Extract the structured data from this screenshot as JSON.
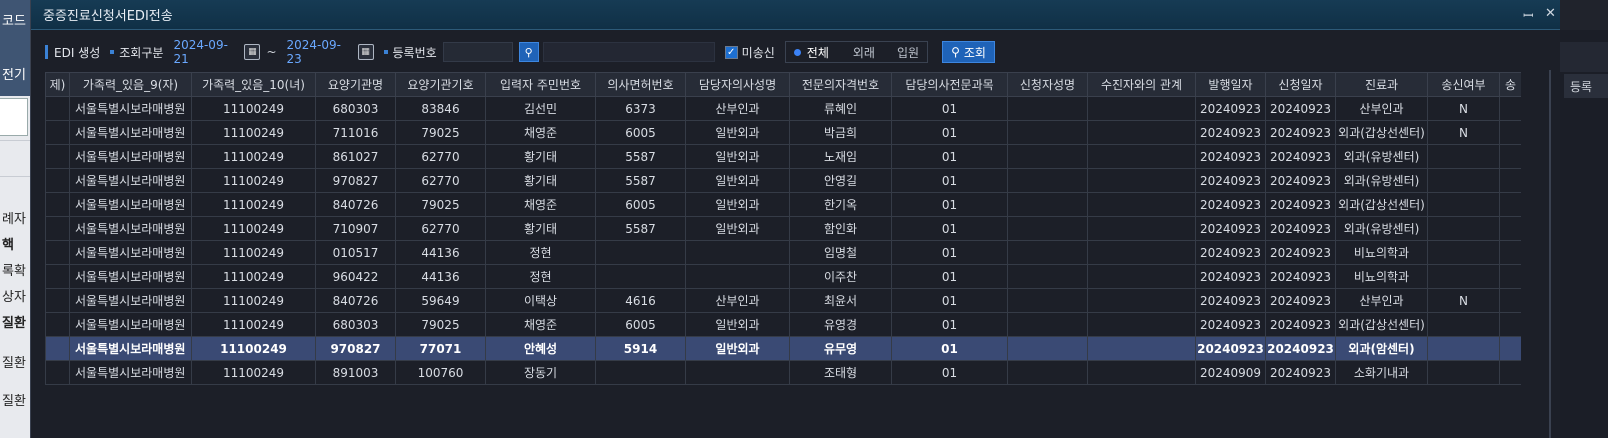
{
  "background_app": {
    "left_texts": [
      "코드",
      "전기",
      "례자",
      "핵",
      "록확",
      "상자",
      "질환",
      "질환",
      "질환"
    ],
    "right_header": "등록"
  },
  "dialog": {
    "title": "중증진료신청서EDI전송",
    "pin_icon": "pin-icon",
    "close_icon": "close-icon"
  },
  "toolbar": {
    "edi_label": "EDI 생성",
    "period_label": "조회구분",
    "date_from": "2024-09-21",
    "tilde": "~",
    "date_to": "2024-09-23",
    "reg_label": "등록번호",
    "reg_value": "",
    "unsent_label": "미송신",
    "radio_all": "전체",
    "radio_out": "외래",
    "radio_in": "입원",
    "query_label": "조회"
  },
  "grid": {
    "columns": [
      "제)",
      "가족력_있음_9(자)",
      "가족력_있음_10(녀)",
      "요양기관명",
      "요양기관기호",
      "입력자 주민번호",
      "의사면허번호",
      "담당자의사성명",
      "전문의자격번호",
      "담당의사전문과목",
      "신청자성명",
      "수진자와의 관계",
      "발행일자",
      "신청일자",
      "진료과",
      "송신여부",
      "송"
    ],
    "rows": [
      [
        "",
        "서울특별시보라매병원",
        "11100249",
        "680303",
        "83846",
        "김선민",
        "6373",
        "산부인과",
        "류혜인",
        "01",
        "",
        "",
        "20240923",
        "20240923",
        "산부인과",
        "N",
        ""
      ],
      [
        "",
        "서울특별시보라매병원",
        "11100249",
        "711016",
        "79025",
        "채영준",
        "6005",
        "일반외과",
        "박금희",
        "01",
        "",
        "",
        "20240923",
        "20240923",
        "외과(갑상선센터)",
        "N",
        ""
      ],
      [
        "",
        "서울특별시보라매병원",
        "11100249",
        "861027",
        "62770",
        "황기태",
        "5587",
        "일반외과",
        "노재임",
        "01",
        "",
        "",
        "20240923",
        "20240923",
        "외과(유방센터)",
        "",
        ""
      ],
      [
        "",
        "서울특별시보라매병원",
        "11100249",
        "970827",
        "62770",
        "황기태",
        "5587",
        "일반외과",
        "안영길",
        "01",
        "",
        "",
        "20240923",
        "20240923",
        "외과(유방센터)",
        "",
        ""
      ],
      [
        "",
        "서울특별시보라매병원",
        "11100249",
        "840726",
        "79025",
        "채영준",
        "6005",
        "일반외과",
        "한기옥",
        "01",
        "",
        "",
        "20240923",
        "20240923",
        "외과(갑상선센터)",
        "",
        ""
      ],
      [
        "",
        "서울특별시보라매병원",
        "11100249",
        "710907",
        "62770",
        "황기태",
        "5587",
        "일반외과",
        "함인화",
        "01",
        "",
        "",
        "20240923",
        "20240923",
        "외과(유방센터)",
        "",
        ""
      ],
      [
        "",
        "서울특별시보라매병원",
        "11100249",
        "010517",
        "44136",
        "정현",
        "",
        "",
        "임명철",
        "01",
        "",
        "",
        "20240923",
        "20240923",
        "비뇨의학과",
        "",
        ""
      ],
      [
        "",
        "서울특별시보라매병원",
        "11100249",
        "960422",
        "44136",
        "정현",
        "",
        "",
        "이주찬",
        "01",
        "",
        "",
        "20240923",
        "20240923",
        "비뇨의학과",
        "",
        ""
      ],
      [
        "",
        "서울특별시보라매병원",
        "11100249",
        "840726",
        "59649",
        "이택상",
        "4616",
        "산부인과",
        "최윤서",
        "01",
        "",
        "",
        "20240923",
        "20240923",
        "산부인과",
        "N",
        ""
      ],
      [
        "",
        "서울특별시보라매병원",
        "11100249",
        "680303",
        "79025",
        "채영준",
        "6005",
        "일반외과",
        "유영경",
        "01",
        "",
        "",
        "20240923",
        "20240923",
        "외과(갑상선센터)",
        "",
        ""
      ],
      [
        "",
        "서울특별시보라매병원",
        "11100249",
        "970827",
        "77071",
        "안혜성",
        "5914",
        "일반외과",
        "유무영",
        "01",
        "",
        "",
        "20240923",
        "20240923",
        "외과(암센터)",
        "",
        ""
      ],
      [
        "",
        "서울특별시보라매병원",
        "11100249",
        "891003",
        "100760",
        "장동기",
        "",
        "",
        "조태형",
        "01",
        "",
        "",
        "20240909",
        "20240923",
        "소화기내과",
        "",
        ""
      ]
    ],
    "selected_row": 10
  }
}
